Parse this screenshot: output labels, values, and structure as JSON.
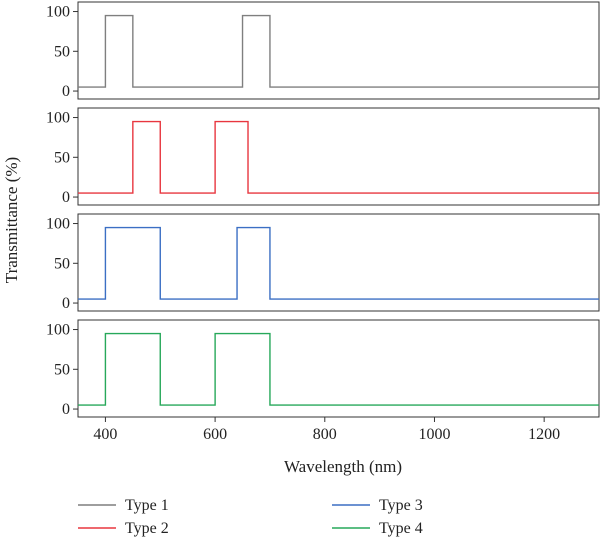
{
  "chart_data": {
    "type": "line",
    "layout": "stacked-panels",
    "xlabel": "Wavelength (nm)",
    "ylabel": "Transmittance (%)",
    "xlim": [
      350,
      1300
    ],
    "ylim": [
      -10,
      112
    ],
    "x_ticks": [
      400,
      600,
      800,
      1000,
      1200
    ],
    "y_ticks": [
      0,
      50,
      100
    ],
    "grid": false,
    "legend_position": "bottom",
    "series": [
      {
        "name": "Type 1",
        "color": "#7f7f7f",
        "x": [
          350,
          400,
          400,
          450,
          450,
          650,
          650,
          700,
          700,
          1300
        ],
        "y": [
          5,
          5,
          95,
          95,
          5,
          5,
          95,
          95,
          5,
          5
        ]
      },
      {
        "name": "Type 2",
        "color": "#e8363f",
        "x": [
          350,
          450,
          450,
          500,
          500,
          600,
          600,
          660,
          660,
          1300
        ],
        "y": [
          5,
          5,
          95,
          95,
          5,
          5,
          95,
          95,
          5,
          5
        ]
      },
      {
        "name": "Type 3",
        "color": "#3b6fc4",
        "x": [
          350,
          400,
          400,
          500,
          500,
          640,
          640,
          700,
          700,
          1300
        ],
        "y": [
          5,
          5,
          95,
          95,
          5,
          5,
          95,
          95,
          5,
          5
        ]
      },
      {
        "name": "Type 4",
        "color": "#27a85a",
        "x": [
          350,
          400,
          400,
          500,
          500,
          600,
          600,
          700,
          700,
          1300
        ],
        "y": [
          5,
          5,
          95,
          95,
          5,
          5,
          95,
          95,
          5,
          5
        ]
      }
    ]
  }
}
